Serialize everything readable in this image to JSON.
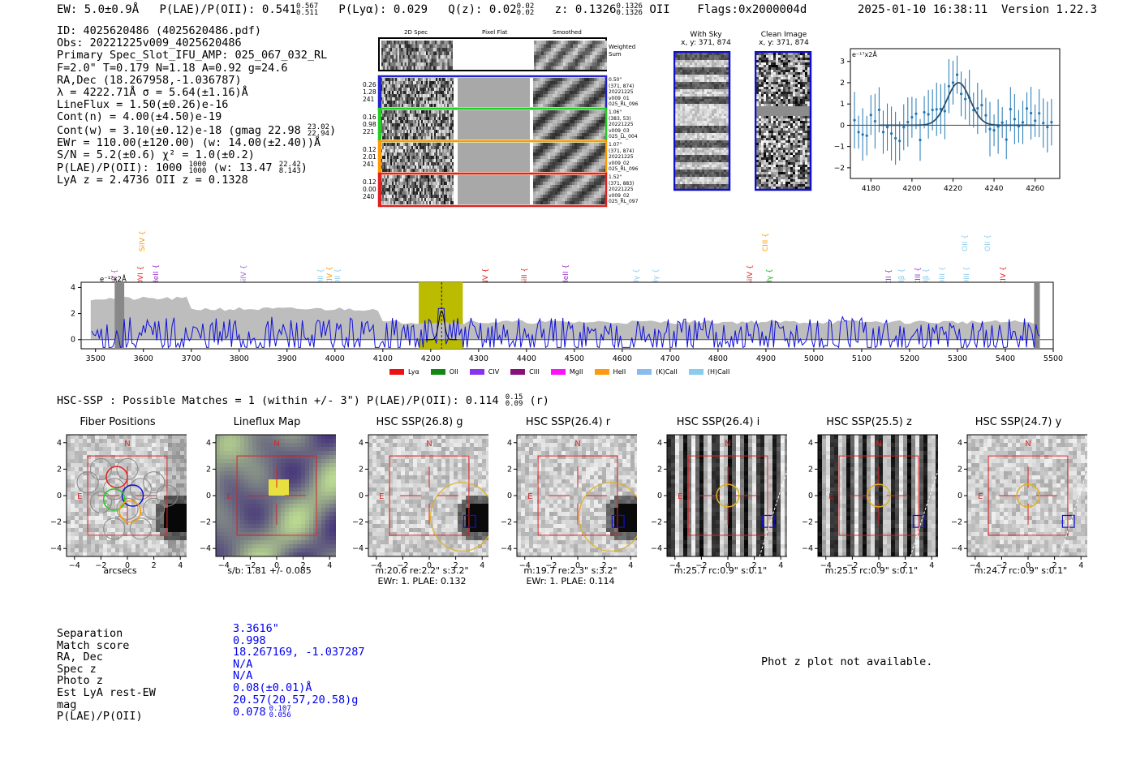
{
  "header": {
    "ew": "EW: 5.0±0.9Å",
    "plae": "P(LAE)/P(OII): 0.541",
    "plae_hi": "0.567",
    "plae_lo": "0.511",
    "plya": "P(Lyα): 0.029",
    "qz": "Q(z): 0.02",
    "qz_hi": "0.02",
    "qz_lo": "0.02",
    "z": "z: 0.1326",
    "z_hi": "0.1326",
    "z_lo": "0.1326",
    "z_line": "OII",
    "flags": "Flags:0x2000004d",
    "timestamp": "2025-01-10 16:38:11",
    "version": "Version 1.22.3"
  },
  "info": {
    "id": "ID: 4025620486 (4025620486.pdf)",
    "obs": "Obs: 20221225v009_4025620486",
    "primary": "Primary Spec_Slot_IFU_AMP: 025_067_032_RL",
    "fparams": "F=2.0\"  T=0.179  N=1.18  A=0.92  g=24.6",
    "radec": "RA,Dec (18.267958,-1.036787)",
    "lambda": "λ = 4222.71Å  σ = 5.64(±1.16)Å",
    "lineflux": "LineFlux = 1.50(±0.26)e-16",
    "contn": "Cont(n) = 4.00(±4.50)e-19",
    "contw": "Cont(w) = 3.10(±0.12)e-18 (gmag 22.98",
    "contw_hi": "23.02",
    "contw_lo": "22.94",
    "ewr": "EWr = 110.00(±120.00) (w: 14.00(±2.40))Å",
    "sn": "S/N = 5.2(±0.6)  χ² = 1.0(±0.2)",
    "plae": "P(LAE)/P(OII): 1000",
    "plae_a_hi": "1000",
    "plae_a_lo": "1000",
    "plae_w": "(w: 13.47",
    "plae_w_hi": "22.42",
    "plae_w_lo": "8.143",
    "lyaz": "LyA z = 2.4736  OII z = 0.1328"
  },
  "spec2d": {
    "columns": [
      "2D Spec",
      "Pixel Flat",
      "Smoothed"
    ],
    "weighted_label": "Weighted Sum",
    "rows": [
      {
        "vals": [
          "0.26",
          "1.28",
          "241"
        ],
        "note": [
          "0.50\"",
          "(371, 874)",
          "20221225",
          "v009_01",
          "025_RL_096"
        ],
        "color": "#2222cc"
      },
      {
        "vals": [
          "0.16",
          "0.98",
          "221"
        ],
        "note": [
          "1.06\"",
          "(383, 53)",
          "20221225",
          "v009_03",
          "025_LL_004"
        ],
        "color": "#22cc22"
      },
      {
        "vals": [
          "0.12",
          "2.01",
          "241"
        ],
        "note": [
          "1.07\"",
          "(371, 874)",
          "20221225",
          "v009_02",
          "025_RL_096"
        ],
        "color": "#ff9900"
      },
      {
        "vals": [
          "0.12",
          "0.00",
          "240"
        ],
        "note": [
          "1.52\"",
          "(371, 883)",
          "20221225",
          "v009_02",
          "025_RL_097"
        ],
        "color": "#dd2222"
      }
    ]
  },
  "sky": {
    "with_sky": "With Sky",
    "with_sky_xy": "x, y: 371, 874",
    "clean": "Clean Image",
    "clean_xy": "x, y: 371, 874"
  },
  "line_fit": {
    "ylabel": "e⁻¹⁷x2Å",
    "x_ticks": [
      "4180",
      "4200",
      "4220",
      "4240",
      "4260"
    ],
    "y_ticks": [
      "3",
      "2",
      "1",
      "0",
      "−1",
      "−2"
    ]
  },
  "full_spec": {
    "ylabel": "e⁻¹⁷x2Å",
    "x_ticks": [
      "3500",
      "3600",
      "3700",
      "3800",
      "3900",
      "4000",
      "4100",
      "4200",
      "4300",
      "4400",
      "4500",
      "4600",
      "4700",
      "4800",
      "4900",
      "5000",
      "5100",
      "5200",
      "5300",
      "5400",
      "5500"
    ],
    "y_ticks": [
      "4",
      "2",
      "0"
    ],
    "lines": [
      {
        "label": "CII {",
        "color": "#cc44cc",
        "x": 3542,
        "row": 1
      },
      {
        "label": "OVI {",
        "color": "#dd2222",
        "x": 3595,
        "row": 1
      },
      {
        "label": "HeII {",
        "color": "#9933cc",
        "x": 3628,
        "row": 1
      },
      {
        "label": "SiIV {",
        "color": "#ff9900",
        "x": 3598,
        "row": 0
      },
      {
        "label": "SiIV {",
        "color": "#9966cc",
        "x": 3810,
        "row": 1
      },
      {
        "label": "OII {",
        "color": "#88ccee",
        "x": 3972,
        "row": 1
      },
      {
        "label": "CIV {",
        "color": "#ff9900",
        "x": 3990,
        "row": 1
      },
      {
        "label": "OII {",
        "color": "#88ccee",
        "x": 4008,
        "row": 1
      },
      {
        "label": "NV {",
        "color": "#dd2222",
        "x": 4316,
        "row": 1
      },
      {
        "label": "SiII {",
        "color": "#dd2222",
        "x": 4397,
        "row": 1
      },
      {
        "label": "HeII {",
        "color": "#9933cc",
        "x": 4483,
        "row": 1
      },
      {
        "label": "Hγ {",
        "color": "#88ccee",
        "x": 4630,
        "row": 1
      },
      {
        "label": "Hγ {",
        "color": "#88ccee",
        "x": 4672,
        "row": 1
      },
      {
        "label": "SiIV {",
        "color": "#dd2222",
        "x": 4868,
        "row": 1
      },
      {
        "label": "Hγ {",
        "color": "#22aa22",
        "x": 4908,
        "row": 1
      },
      {
        "label": "CIII {",
        "color": "#ff9900",
        "x": 4900,
        "row": 0
      },
      {
        "label": "CII {",
        "color": "#9933cc",
        "x": 5158,
        "row": 1
      },
      {
        "label": "Hβ {",
        "color": "#88ccee",
        "x": 5185,
        "row": 1
      },
      {
        "label": "CIII {",
        "color": "#9933cc",
        "x": 5218,
        "row": 1
      },
      {
        "label": "Hβ {",
        "color": "#88ccee",
        "x": 5235,
        "row": 1
      },
      {
        "label": "OIII {",
        "color": "#88ccee",
        "x": 5270,
        "row": 1
      },
      {
        "label": "OIII {",
        "color": "#88ccee",
        "x": 5320,
        "row": 1
      },
      {
        "label": "OII {",
        "color": "#88ccee",
        "x": 5317,
        "row": 0
      },
      {
        "label": "OII {",
        "color": "#88ccee",
        "x": 5364,
        "row": 0
      },
      {
        "label": "CIV {",
        "color": "#dd2222",
        "x": 5397,
        "row": 1
      }
    ],
    "legend": [
      {
        "label": "Lyα",
        "color": "#ee1111"
      },
      {
        "label": "OII",
        "color": "#118811"
      },
      {
        "label": "CIV",
        "color": "#8833ee"
      },
      {
        "label": "CIII",
        "color": "#881177"
      },
      {
        "label": "MgII",
        "color": "#ff11ff"
      },
      {
        "label": "HeII",
        "color": "#ff9911"
      },
      {
        "label": "(K)CaII",
        "color": "#88bbee"
      },
      {
        "label": "(H)CaII",
        "color": "#88ccee"
      }
    ]
  },
  "hsc": {
    "title": "HSC-SSP : Possible Matches = 1 (within +/- 3\")  P(LAE)/P(OII): 0.114",
    "title_hi": "0.15",
    "title_lo": "0.09",
    "title_band": "(r)",
    "panels": [
      {
        "title": "Fiber Positions",
        "foot1": "arcsecs",
        "foot2": ""
      },
      {
        "title": "Lineflux Map",
        "foot1": "s/b: 1.81 +/- 0.085",
        "foot2": ""
      },
      {
        "title": "HSC SSP(26.8) g",
        "foot1": "m:20.6  re:2.2\"  s:3.2\"",
        "foot2": "EWr: 1. PLAE: 0.132"
      },
      {
        "title": "HSC SSP(26.4) r",
        "foot1": "m:19.7  re:2.3\"  s:3.2\"",
        "foot2": "EWr: 1. PLAE: 0.114"
      },
      {
        "title": "HSC SSP(26.4) i",
        "foot1": "m:25.7 rc:0.9\"  s:0.1\"",
        "foot2": ""
      },
      {
        "title": "HSC SSP(25.5) z",
        "foot1": "m:25.5 rc:0.9\"  s:0.1\"",
        "foot2": ""
      },
      {
        "title": "HSC SSP(24.7) y",
        "foot1": "m:24.7 rc:0.9\"  s:0.1\"",
        "foot2": ""
      }
    ],
    "x_ticks": [
      "−4",
      "−2",
      "0",
      "2",
      "4"
    ],
    "y_ticks": [
      "4",
      "2",
      "0",
      "−2",
      "−4"
    ],
    "n_label": "N",
    "e_label": "E"
  },
  "match": {
    "labels": [
      "Separation",
      "Match score",
      "RA, Dec",
      "Spec z",
      "Photo z",
      "Est LyA rest-EW",
      "mag",
      "P(LAE)/P(OII)"
    ],
    "values": [
      "3.3616\"",
      "0.998",
      "18.267169, -1.037287",
      "N/A",
      "N/A",
      "0.08(±0.01)Å",
      "20.57(20.57,20.58)g",
      "0.078"
    ],
    "plae_hi": "0.107",
    "plae_lo": "0.056",
    "photz_note": "Phot z plot not available."
  }
}
